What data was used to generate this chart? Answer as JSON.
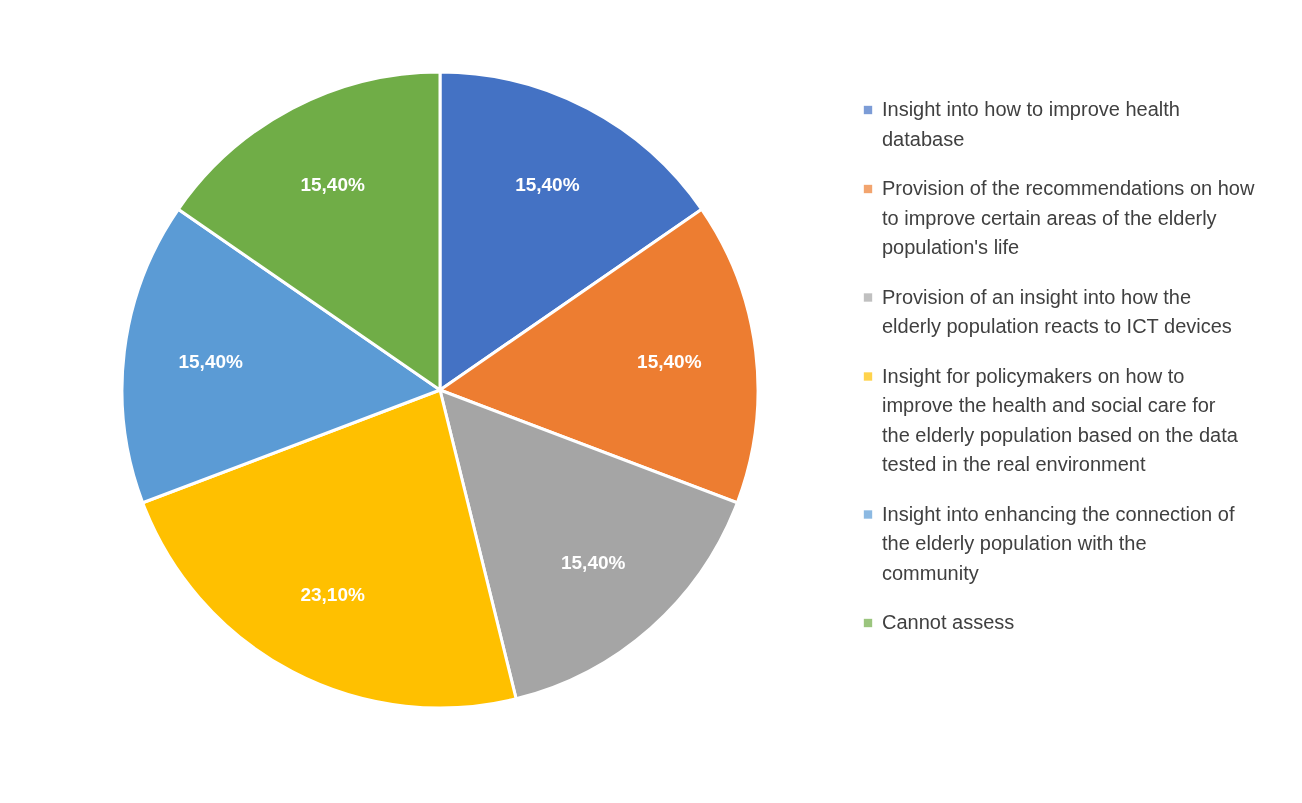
{
  "chart_data": {
    "type": "pie",
    "categories": [
      "Insight into how to improve health database",
      "Provision of the recommendations on how to improve certain areas of the elderly population's life",
      "Provision of an insight into how the elderly population reacts to ICT devices",
      "Insight for policymakers on how to improve the health and social care for the elderly population based on the data tested in the real environment",
      "Insight into enhancing the connection of the elderly population with the community",
      "Cannot assess"
    ],
    "values": [
      15.4,
      15.4,
      15.4,
      23.1,
      15.4,
      15.4
    ],
    "value_labels": [
      "15,40%",
      "15,40%",
      "15,40%",
      "23,10%",
      "15,40%",
      "15,40%"
    ],
    "colors": [
      "#4472c4",
      "#ed7d31",
      "#a5a5a5",
      "#ffc000",
      "#5b9bd5",
      "#70ad47"
    ],
    "legend": "right"
  }
}
